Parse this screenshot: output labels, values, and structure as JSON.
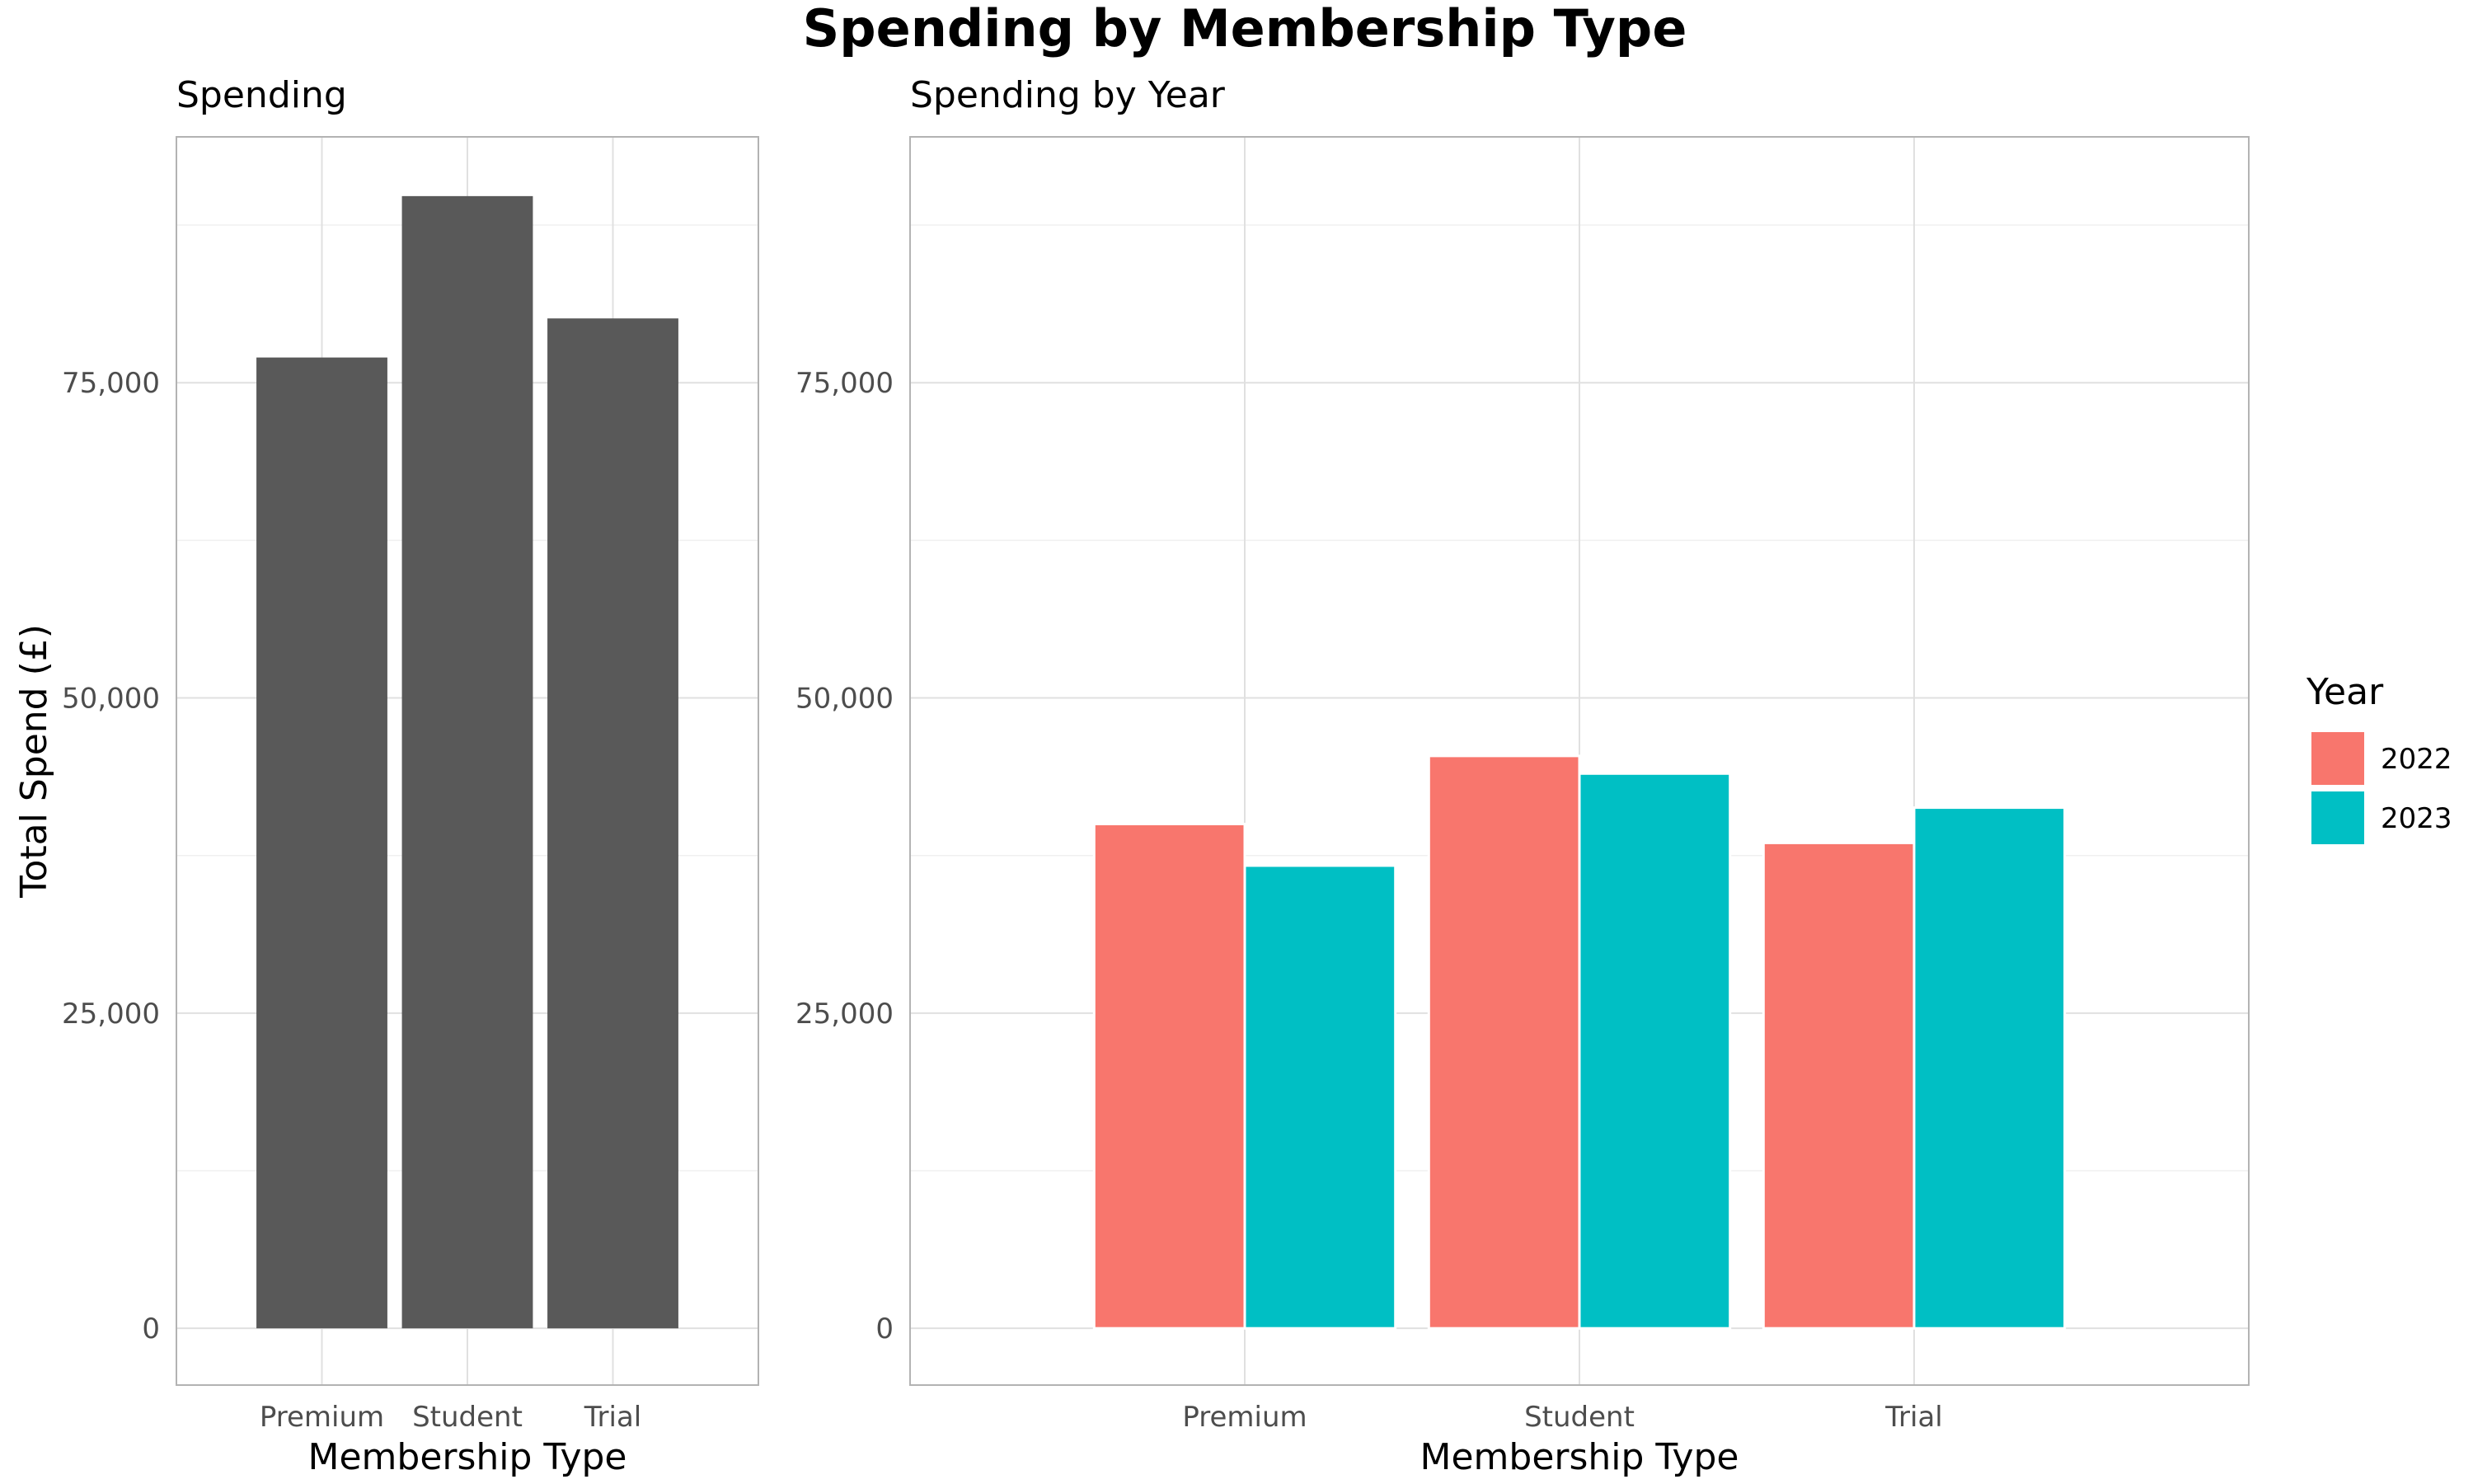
{
  "title": "Spending by Membership Type",
  "colors": {
    "total": "#595959",
    "2022": "#F8766D",
    "2023": "#00BFC4"
  },
  "legend": {
    "title": "Year",
    "placement": "right",
    "items": [
      {
        "label": "2022",
        "color_key": "2022"
      },
      {
        "label": "2023",
        "color_key": "2023"
      }
    ]
  },
  "chart_data": [
    {
      "type": "bar",
      "title": "Spending",
      "xlabel": "Membership Type",
      "ylabel": "Total Spend (£)",
      "categories": [
        "Premium",
        "Student",
        "Trial"
      ],
      "values": [
        77000,
        89800,
        80100
      ],
      "ylim": [
        -4500,
        94500
      ],
      "yticks": [
        0,
        25000,
        50000,
        75000
      ],
      "ytick_labels": [
        "0",
        "25,000",
        "50,000",
        "75,000"
      ],
      "grid": true
    },
    {
      "type": "bar",
      "title": "Spending by Year",
      "xlabel": "Membership Type",
      "ylabel": "",
      "categories": [
        "Premium",
        "Student",
        "Trial"
      ],
      "series": [
        {
          "name": "2022",
          "values": [
            40000,
            45400,
            38500
          ]
        },
        {
          "name": "2023",
          "values": [
            36700,
            44000,
            41300
          ]
        }
      ],
      "ylim": [
        -4500,
        94500
      ],
      "yticks": [
        0,
        25000,
        50000,
        75000
      ],
      "ytick_labels": [
        "0",
        "25,000",
        "50,000",
        "75,000"
      ],
      "grid": true
    }
  ]
}
